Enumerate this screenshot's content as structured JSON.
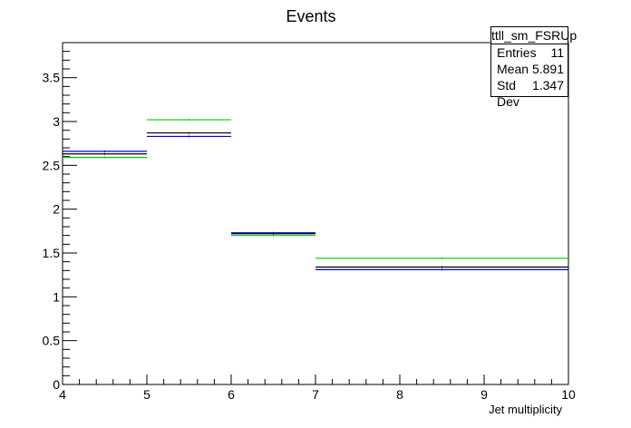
{
  "chart_data": {
    "type": "histogram-steps",
    "title": "Events",
    "xlabel": "Jet multiplicity",
    "ylabel": "",
    "xlim": [
      4,
      10
    ],
    "ylim": [
      0,
      3.9
    ],
    "x_ticks": [
      4,
      5,
      6,
      7,
      8,
      9,
      10
    ],
    "y_ticks": [
      0,
      0.5,
      1,
      1.5,
      2,
      2.5,
      3,
      3.5
    ],
    "bins": [
      [
        4,
        5
      ],
      [
        5,
        6
      ],
      [
        6,
        7
      ],
      [
        7,
        10
      ]
    ],
    "series": [
      {
        "color": "#000000",
        "values": [
          2.63,
          2.87,
          1.72,
          1.34
        ]
      },
      {
        "color": "#0000cc",
        "values": [
          2.66,
          2.83,
          1.73,
          1.31
        ]
      },
      {
        "color": "#00cc00",
        "values": [
          2.59,
          3.02,
          1.7,
          1.44
        ]
      }
    ]
  },
  "stats": {
    "name": "ttll_sm_FSRUp",
    "rows": [
      {
        "label": "Entries",
        "value": "11"
      },
      {
        "label": "Mean",
        "value": "5.891"
      },
      {
        "label": "Std Dev",
        "value": "1.347"
      }
    ]
  }
}
